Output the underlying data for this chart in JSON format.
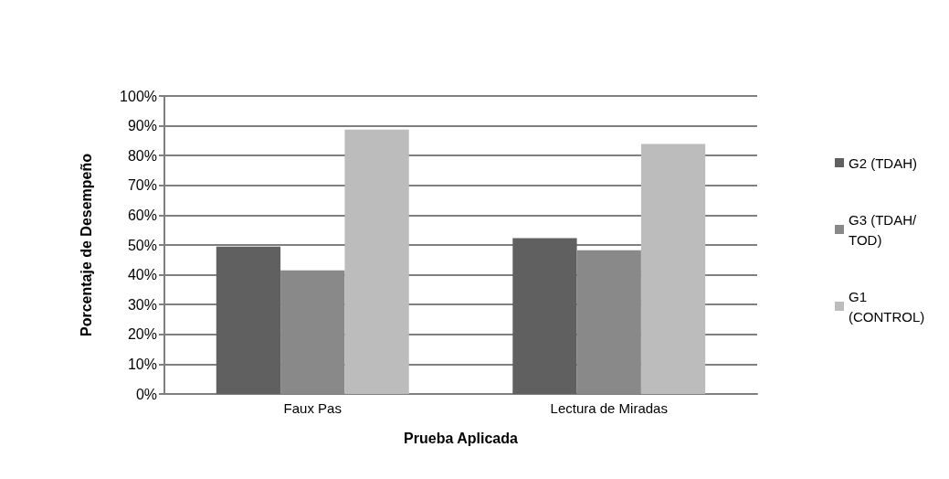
{
  "chart_data": {
    "type": "bar",
    "xlabel": "Prueba Aplicada",
    "ylabel": "Porcentaje de Desempeño",
    "categories": [
      "Faux Pas",
      "Lectura de Miradas"
    ],
    "series": [
      {
        "name": "G2 (TDAH)",
        "color": "#606060",
        "values": [
          49.5,
          52.3
        ]
      },
      {
        "name": "G3 (TDAH/TOD)",
        "color": "#898989",
        "values": [
          41.5,
          48.2
        ]
      },
      {
        "name": "G1 (CONTROL)",
        "color": "#bcbcbc",
        "values": [
          88.7,
          83.9
        ]
      }
    ],
    "ylim": [
      0,
      100
    ],
    "yticks": [
      {
        "value": 0,
        "label": "0%"
      },
      {
        "value": 10,
        "label": "10%"
      },
      {
        "value": 20,
        "label": "20%"
      },
      {
        "value": 30,
        "label": "30%"
      },
      {
        "value": 40,
        "label": "40%"
      },
      {
        "value": 50,
        "label": "50%"
      },
      {
        "value": 60,
        "label": "60%"
      },
      {
        "value": 70,
        "label": "70%"
      },
      {
        "value": 80,
        "label": "80%"
      },
      {
        "value": 90,
        "label": "90%"
      },
      {
        "value": 100,
        "label": "100%"
      }
    ],
    "grid": "y",
    "legend": "right"
  }
}
